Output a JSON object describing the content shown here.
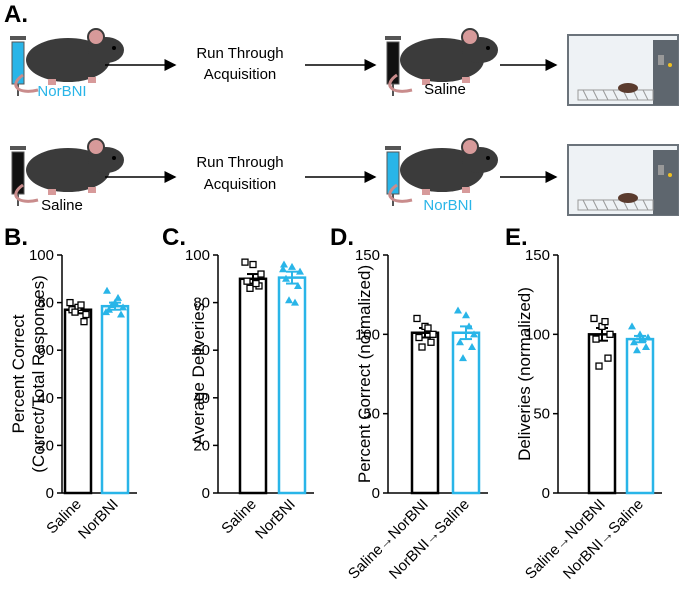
{
  "diagram": {
    "label": "A.",
    "rows": [
      {
        "pre": "NorBNI",
        "step": [
          "Run Through",
          "Acquisition"
        ],
        "post": "Saline"
      },
      {
        "pre": "Saline",
        "step": [
          "Run Through",
          "Acquisition"
        ],
        "post": "NorBNI"
      }
    ]
  },
  "chart_data": [
    {
      "type": "bar",
      "panel_label": "B.",
      "ylabel": [
        "Percent Correct",
        "(Correct/Total Responses)"
      ],
      "categories": [
        "Saline",
        "NorBNI"
      ],
      "colors": [
        "#000000",
        "#29b5e8"
      ],
      "values": [
        77,
        78.5
      ],
      "errors": [
        1.5,
        1.5
      ],
      "points": [
        [
          80,
          78,
          75,
          77,
          72,
          76,
          79
        ],
        [
          85,
          80,
          78,
          77,
          75,
          79,
          82,
          76
        ]
      ],
      "ylim": [
        0,
        100
      ],
      "yticks": [
        0,
        20,
        40,
        60,
        80,
        100
      ]
    },
    {
      "type": "bar",
      "panel_label": "C.",
      "ylabel": [
        "Average Deliveries"
      ],
      "categories": [
        "Saline",
        "NorBNI"
      ],
      "colors": [
        "#000000",
        "#29b5e8"
      ],
      "values": [
        90,
        90.5
      ],
      "errors": [
        2,
        2.5
      ],
      "points": [
        [
          97,
          96,
          92,
          89,
          87,
          86,
          88
        ],
        [
          96,
          95,
          93,
          90,
          87,
          81,
          80,
          94
        ]
      ],
      "ylim": [
        0,
        100
      ],
      "yticks": [
        0,
        20,
        40,
        60,
        80,
        100
      ]
    },
    {
      "type": "bar",
      "panel_label": "D.",
      "ylabel": [
        "Percent Correct (normalized)"
      ],
      "categories": [
        "Saline→NorBNI",
        "NorBNI→Saline"
      ],
      "colors": [
        "#000000",
        "#29b5e8"
      ],
      "values": [
        101,
        101
      ],
      "errors": [
        3,
        4
      ],
      "points": [
        [
          110,
          105,
          100,
          98,
          95,
          92,
          104
        ],
        [
          115,
          112,
          100,
          95,
          92,
          85,
          105
        ]
      ],
      "ylim": [
        0,
        150
      ],
      "yticks": [
        0,
        50,
        100,
        150
      ]
    },
    {
      "type": "bar",
      "panel_label": "E.",
      "ylabel": [
        "Deliveries (normalized)"
      ],
      "categories": [
        "Saline→NorBNI",
        "NorBNI→Saline"
      ],
      "colors": [
        "#000000",
        "#29b5e8"
      ],
      "values": [
        100,
        97
      ],
      "errors": [
        4,
        2
      ],
      "points": [
        [
          110,
          105,
          100,
          97,
          85,
          80,
          108
        ],
        [
          105,
          100,
          98,
          95,
          92,
          90,
          97
        ]
      ],
      "ylim": [
        0,
        150
      ],
      "yticks": [
        0,
        50,
        100,
        150
      ]
    }
  ]
}
